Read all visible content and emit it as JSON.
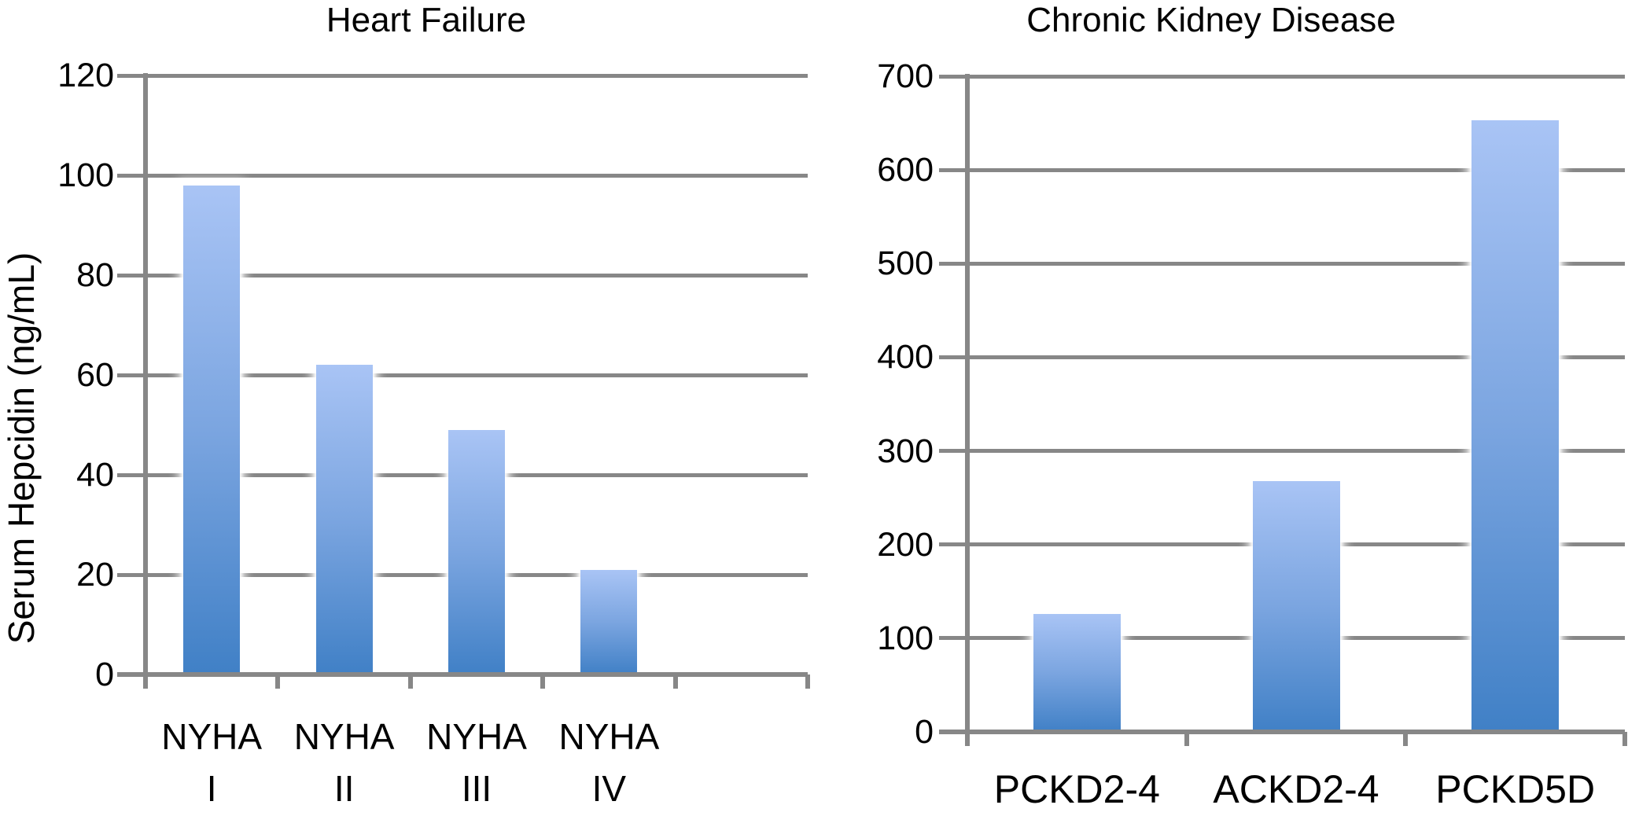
{
  "figure": {
    "background": "#ffffff",
    "axis_color": "#878787",
    "text_color": "#000000",
    "bar_gradient_top": "#a9c4f5",
    "bar_gradient_bottom": "#4080c6"
  },
  "chart_data": [
    {
      "type": "bar",
      "title": "Heart Failure",
      "ylabel": "Serum Hepcidin (ng/mL)",
      "xlabel": "",
      "categories": [
        "NYHA I",
        "NYHA II",
        "NYHA III",
        "NYHA IV"
      ],
      "category_lines": [
        [
          "NYHA",
          "I"
        ],
        [
          "NYHA",
          "II"
        ],
        [
          "NYHA",
          "III"
        ],
        [
          "NYHA",
          "IV"
        ]
      ],
      "values": [
        98,
        62,
        49,
        21
      ],
      "ylim": [
        0,
        120
      ],
      "yticks": [
        0,
        20,
        40,
        60,
        80,
        100,
        120
      ],
      "grid": true,
      "legend": false
    },
    {
      "type": "bar",
      "title": "Chronic Kidney Disease",
      "ylabel": "",
      "xlabel": "",
      "categories": [
        "PCKD2-4",
        "ACKD2-4",
        "PCKD5D"
      ],
      "category_lines": [
        [
          "PCKD2-4"
        ],
        [
          "ACKD2-4"
        ],
        [
          "PCKD5D"
        ]
      ],
      "values": [
        126,
        268,
        653
      ],
      "ylim": [
        0,
        700
      ],
      "yticks": [
        0,
        100,
        200,
        300,
        400,
        500,
        600,
        700
      ],
      "grid": true,
      "legend": false
    }
  ]
}
